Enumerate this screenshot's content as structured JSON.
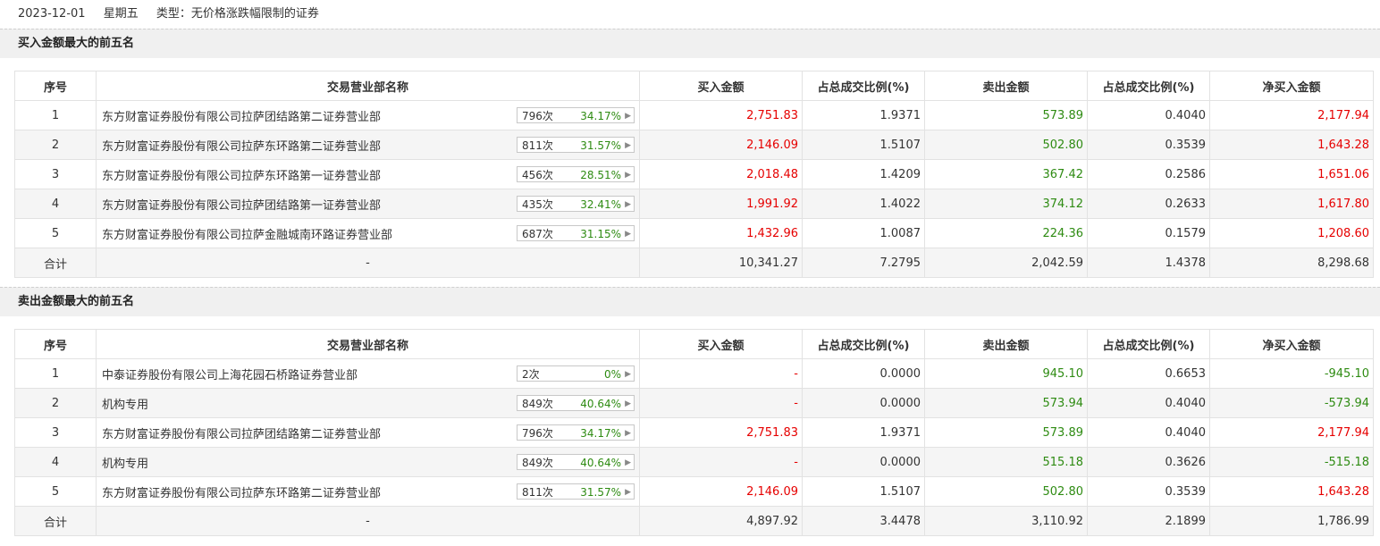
{
  "header": {
    "date": "2023-12-01",
    "weekday": "星期五",
    "type": "类型：无价格涨跌幅限制的证券"
  },
  "columns": [
    "序号",
    "交易营业部名称",
    "买入金额",
    "占总成交比例(%)",
    "卖出金额",
    "占总成交比例(%)",
    "净买入金额"
  ],
  "colors": {
    "up": "#e60000",
    "down": "#2e8b12"
  },
  "buy_section": {
    "title": "买入金额最大的前五名",
    "rows": [
      {
        "idx": "1",
        "name": "东方财富证券股份有限公司拉萨团结路第二证券营业部",
        "count": "796次",
        "pct": "34.17%",
        "buy": "2,751.83",
        "buy_ratio": "1.9371",
        "sell": "573.89",
        "sell_ratio": "0.4040",
        "net": "2,177.94"
      },
      {
        "idx": "2",
        "name": "东方财富证券股份有限公司拉萨东环路第二证券营业部",
        "count": "811次",
        "pct": "31.57%",
        "buy": "2,146.09",
        "buy_ratio": "1.5107",
        "sell": "502.80",
        "sell_ratio": "0.3539",
        "net": "1,643.28"
      },
      {
        "idx": "3",
        "name": "东方财富证券股份有限公司拉萨东环路第一证券营业部",
        "count": "456次",
        "pct": "28.51%",
        "buy": "2,018.48",
        "buy_ratio": "1.4209",
        "sell": "367.42",
        "sell_ratio": "0.2586",
        "net": "1,651.06"
      },
      {
        "idx": "4",
        "name": "东方财富证券股份有限公司拉萨团结路第一证券营业部",
        "count": "435次",
        "pct": "32.41%",
        "buy": "1,991.92",
        "buy_ratio": "1.4022",
        "sell": "374.12",
        "sell_ratio": "0.2633",
        "net": "1,617.80"
      },
      {
        "idx": "5",
        "name": "东方财富证券股份有限公司拉萨金融城南环路证券营业部",
        "count": "687次",
        "pct": "31.15%",
        "buy": "1,432.96",
        "buy_ratio": "1.0087",
        "sell": "224.36",
        "sell_ratio": "0.1579",
        "net": "1,208.60"
      }
    ],
    "total": {
      "label": "合计",
      "name": "-",
      "buy": "10,341.27",
      "buy_ratio": "7.2795",
      "sell": "2,042.59",
      "sell_ratio": "1.4378",
      "net": "8,298.68"
    }
  },
  "sell_section": {
    "title": "卖出金额最大的前五名",
    "rows": [
      {
        "idx": "1",
        "name": "中泰证券股份有限公司上海花园石桥路证券营业部",
        "count": "2次",
        "pct": "0%",
        "buy": "-",
        "buy_ratio": "0.0000",
        "sell": "945.10",
        "sell_ratio": "0.6653",
        "net": "-945.10"
      },
      {
        "idx": "2",
        "name": "机构专用",
        "count": "849次",
        "pct": "40.64%",
        "buy": "-",
        "buy_ratio": "0.0000",
        "sell": "573.94",
        "sell_ratio": "0.4040",
        "net": "-573.94"
      },
      {
        "idx": "3",
        "name": "东方财富证券股份有限公司拉萨团结路第二证券营业部",
        "count": "796次",
        "pct": "34.17%",
        "buy": "2,751.83",
        "buy_ratio": "1.9371",
        "sell": "573.89",
        "sell_ratio": "0.4040",
        "net": "2,177.94"
      },
      {
        "idx": "4",
        "name": "机构专用",
        "count": "849次",
        "pct": "40.64%",
        "buy": "-",
        "buy_ratio": "0.0000",
        "sell": "515.18",
        "sell_ratio": "0.3626",
        "net": "-515.18"
      },
      {
        "idx": "5",
        "name": "东方财富证券股份有限公司拉萨东环路第二证券营业部",
        "count": "811次",
        "pct": "31.57%",
        "buy": "2,146.09",
        "buy_ratio": "1.5107",
        "sell": "502.80",
        "sell_ratio": "0.3539",
        "net": "1,643.28"
      }
    ],
    "total": {
      "label": "合计",
      "name": "-",
      "buy": "4,897.92",
      "buy_ratio": "3.4478",
      "sell": "3,110.92",
      "sell_ratio": "2.1899",
      "net": "1,786.99"
    }
  }
}
